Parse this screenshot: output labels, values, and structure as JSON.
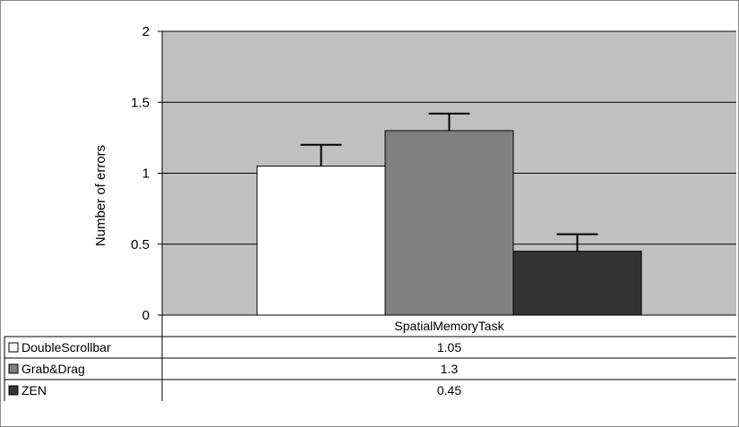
{
  "chart_data": {
    "type": "bar",
    "categories": [
      "SpatialMemoryTask"
    ],
    "series": [
      {
        "name": "DoubleScrollbar",
        "values": [
          1.05
        ],
        "error": [
          0.15
        ],
        "color": "#ffffff",
        "table_value": "1.05"
      },
      {
        "name": "Grab&Drag",
        "values": [
          1.3
        ],
        "error": [
          0.12
        ],
        "color": "#808080",
        "table_value": "1.3"
      },
      {
        "name": "ZEN",
        "values": [
          0.45
        ],
        "error": [
          0.12
        ],
        "color": "#333333",
        "table_value": "0.45"
      }
    ],
    "ylabel": "Number of errors",
    "ylim": [
      0,
      2
    ],
    "yticks": [
      0,
      0.5,
      1,
      1.5,
      2
    ],
    "ytick_labels": [
      "0",
      "0.5",
      "1",
      "1.5",
      "2"
    ],
    "grid": true,
    "plot_background": "#c0c0c0",
    "legend": "data-table-below"
  }
}
